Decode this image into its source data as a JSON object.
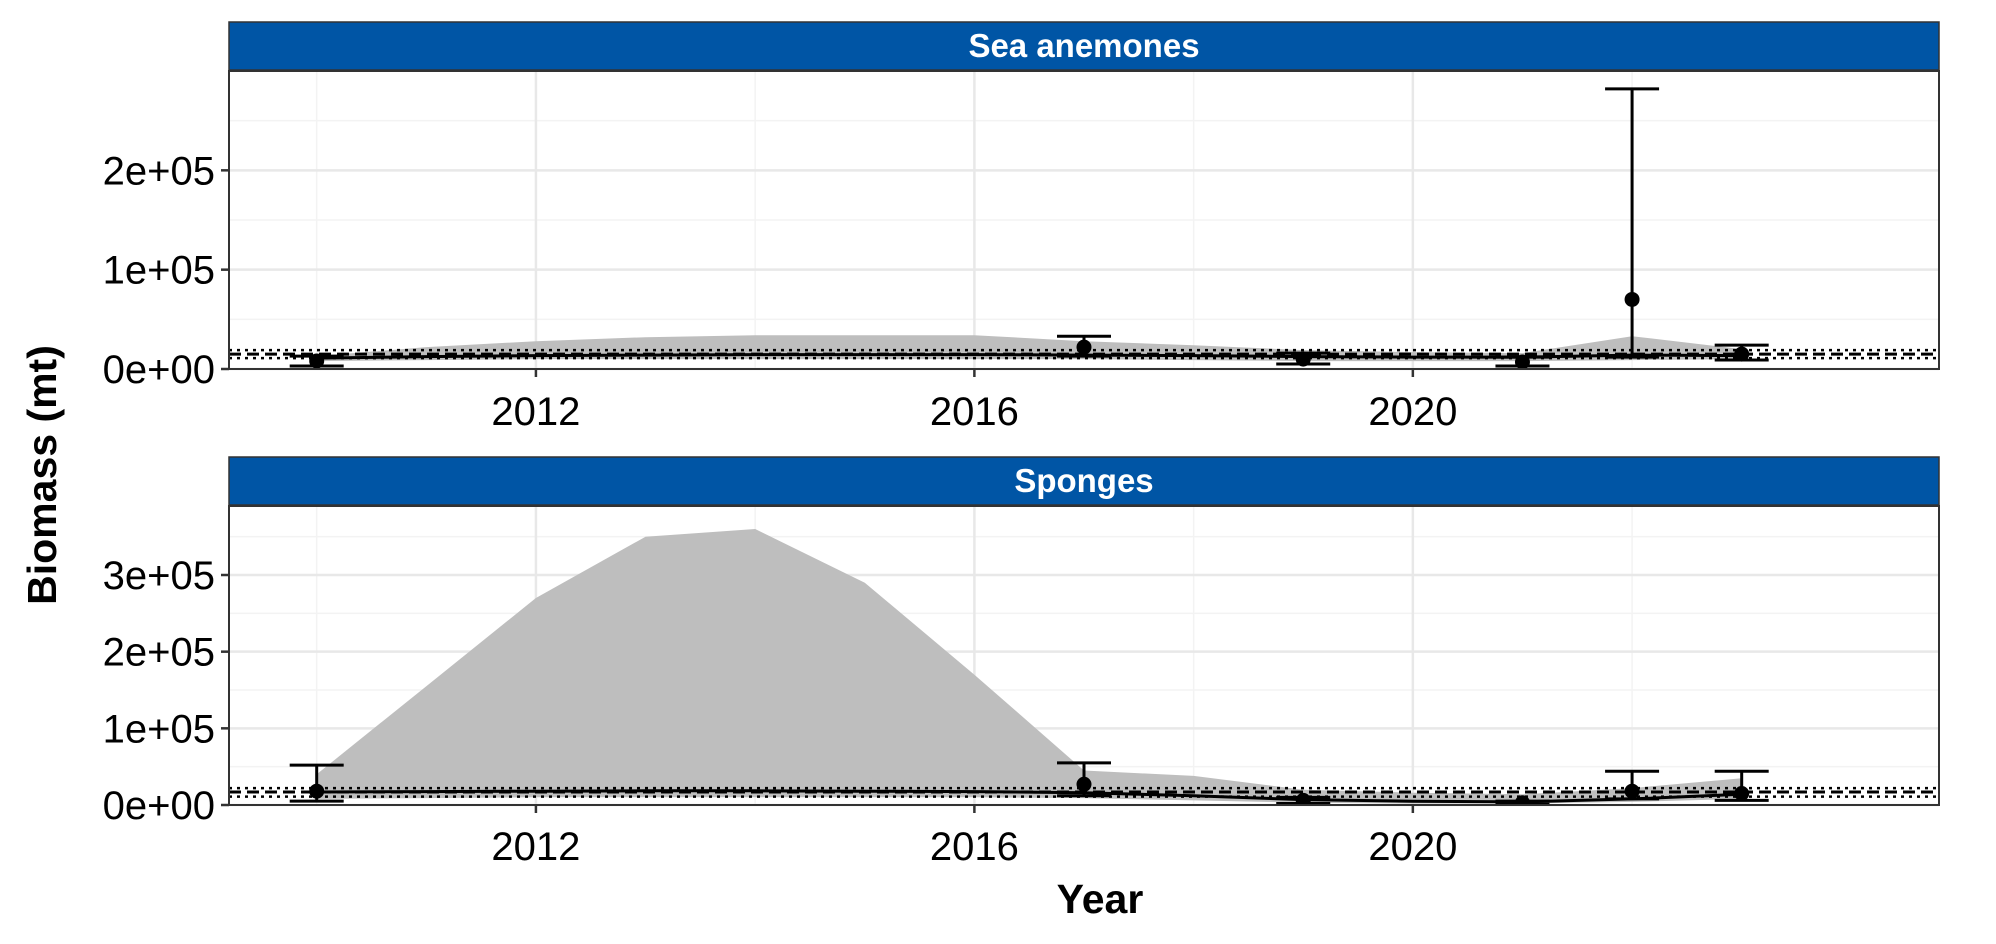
{
  "chart_data": [
    {
      "type": "line",
      "title": "Sea anemones",
      "xlabel": "Year",
      "ylabel": "Biomass (mt)",
      "xlim": [
        2009.2,
        2024.8
      ],
      "ylim": [
        0,
        300000
      ],
      "x_ticks": [
        2012,
        2016,
        2020
      ],
      "x_tick_labels": [
        "2012",
        "2016",
        "2020"
      ],
      "y_ticks": [
        0,
        100000,
        200000
      ],
      "y_tick_labels": [
        "0e+00",
        "1e+05",
        "2e+05"
      ],
      "grid": true,
      "series": [
        {
          "kind": "model-band",
          "x": [
            2010,
            2011,
            2012,
            2013,
            2014,
            2015,
            2016,
            2017,
            2018,
            2019,
            2020,
            2021,
            2022,
            2023
          ],
          "upper": [
            13000,
            22000,
            28000,
            32000,
            34000,
            34000,
            34000,
            28000,
            24000,
            19000,
            17000,
            16000,
            33000,
            20000
          ],
          "lower": [
            8000,
            9000,
            10000,
            10000,
            10000,
            10000,
            10000,
            10000,
            9000,
            8000,
            8000,
            8000,
            9000,
            10000
          ],
          "fit": [
            11000,
            12500,
            13500,
            14000,
            14500,
            14500,
            14500,
            14000,
            13500,
            12500,
            12000,
            12000,
            14000,
            13500
          ]
        },
        {
          "kind": "survey-points",
          "x": [
            2010,
            2017,
            2019,
            2021,
            2022,
            2023
          ],
          "values": [
            8000,
            22000,
            10000,
            7000,
            70000,
            15000
          ],
          "lower": [
            3000,
            13000,
            5000,
            3000,
            12000,
            9000
          ],
          "upper": [
            13000,
            33000,
            16000,
            12000,
            282000,
            24000
          ]
        }
      ],
      "h_lines": {
        "mean": 15000,
        "lower": 11000,
        "upper": 19000
      }
    },
    {
      "type": "line",
      "title": "Sponges",
      "xlabel": "Year",
      "ylabel": "Biomass (mt)",
      "xlim": [
        2009.2,
        2024.8
      ],
      "ylim": [
        0,
        390000
      ],
      "x_ticks": [
        2012,
        2016,
        2020
      ],
      "x_tick_labels": [
        "2012",
        "2016",
        "2020"
      ],
      "y_ticks": [
        0,
        100000,
        200000,
        300000
      ],
      "y_tick_labels": [
        "0e+00",
        "1e+05",
        "2e+05",
        "3e+05"
      ],
      "grid": true,
      "series": [
        {
          "kind": "model-band",
          "x": [
            2010,
            2011,
            2012,
            2013,
            2014,
            2015,
            2016,
            2017,
            2018,
            2019,
            2020,
            2021,
            2022,
            2023
          ],
          "upper": [
            40000,
            155000,
            270000,
            350000,
            360000,
            290000,
            170000,
            45000,
            38000,
            20000,
            16000,
            14000,
            22000,
            35000
          ],
          "lower": [
            8000,
            9000,
            10000,
            10000,
            10000,
            10000,
            10000,
            9000,
            6000,
            3000,
            2000,
            2000,
            4000,
            8000
          ],
          "fit": [
            17000,
            17500,
            18000,
            18500,
            18500,
            18000,
            17500,
            16000,
            12000,
            7000,
            5000,
            4000,
            8000,
            14000
          ]
        },
        {
          "kind": "survey-points",
          "x": [
            2010,
            2017,
            2019,
            2021,
            2022,
            2023
          ],
          "values": [
            18000,
            27000,
            6000,
            3000,
            18000,
            15000
          ],
          "lower": [
            5000,
            12000,
            2000,
            1000,
            8000,
            6000
          ],
          "upper": [
            52000,
            55000,
            10000,
            5000,
            44000,
            44000
          ]
        }
      ],
      "h_lines": {
        "mean": 17000,
        "lower": 11000,
        "upper": 22000
      }
    }
  ],
  "colors": {
    "strip": "#0055a5",
    "strip_text": "#ffffff",
    "band": "#bebebe",
    "ink": "#000000",
    "grid_major": "#e8e8e8",
    "grid_minor": "#f3f3f3"
  }
}
